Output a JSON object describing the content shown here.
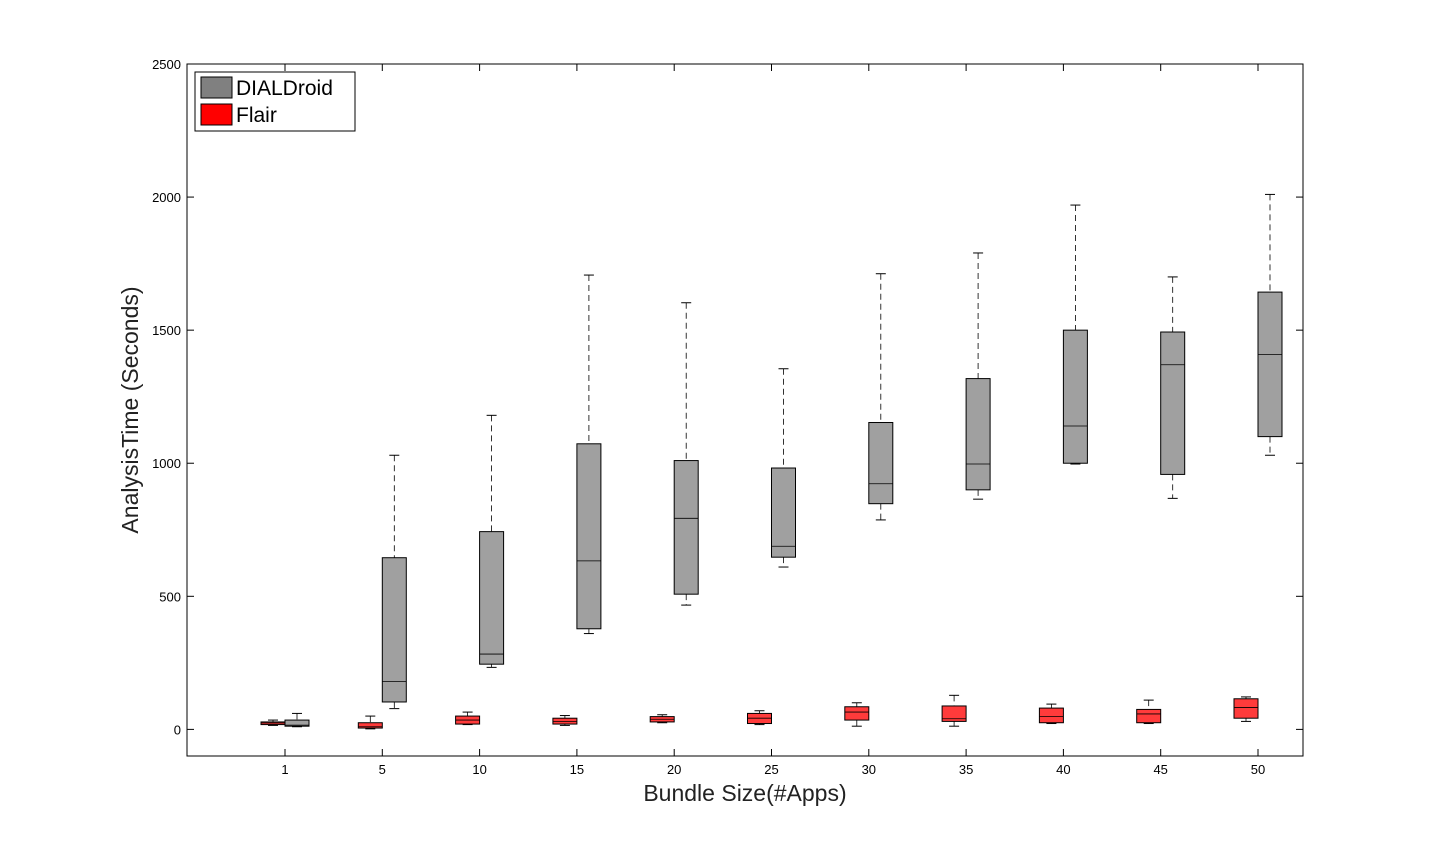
{
  "chart_data": {
    "type": "box",
    "xlabel": "Bundle Size(#Apps)",
    "ylabel": "AnalysisTime (Seconds)",
    "categories": [
      "1",
      "5",
      "10",
      "15",
      "20",
      "25",
      "30",
      "35",
      "40",
      "45",
      "50"
    ],
    "ylim": [
      -100,
      2500
    ],
    "yticks": [
      0,
      500,
      1000,
      1500,
      2000,
      2500
    ],
    "grid": false,
    "legend_position": "top-left",
    "series": [
      {
        "name": "DIALDroid",
        "color": "#a0a0a0",
        "legend_color": "#808080",
        "boxes": [
          {
            "whisker_low": 10,
            "q1": 12,
            "median": 16,
            "q3": 35,
            "whisker_high": 60
          },
          {
            "whisker_low": 78,
            "q1": 103,
            "median": 180,
            "q3": 645,
            "whisker_high": 1030
          },
          {
            "whisker_low": 233,
            "q1": 245,
            "median": 283,
            "q3": 743,
            "whisker_high": 1180
          },
          {
            "whisker_low": 360,
            "q1": 378,
            "median": 633,
            "q3": 1073,
            "whisker_high": 1707
          },
          {
            "whisker_low": 467,
            "q1": 508,
            "median": 793,
            "q3": 1010,
            "whisker_high": 1603
          },
          {
            "whisker_low": 610,
            "q1": 647,
            "median": 688,
            "q3": 982,
            "whisker_high": 1355
          },
          {
            "whisker_low": 787,
            "q1": 848,
            "median": 923,
            "q3": 1153,
            "whisker_high": 1712
          },
          {
            "whisker_low": 865,
            "q1": 900,
            "median": 997,
            "q3": 1318,
            "whisker_high": 1790
          },
          {
            "whisker_low": 997,
            "q1": 1000,
            "median": 1140,
            "q3": 1500,
            "whisker_high": 1970
          },
          {
            "whisker_low": 868,
            "q1": 958,
            "median": 1370,
            "q3": 1493,
            "whisker_high": 1700
          },
          {
            "whisker_low": 1030,
            "q1": 1100,
            "median": 1408,
            "q3": 1643,
            "whisker_high": 2010
          }
        ]
      },
      {
        "name": "Flair",
        "color": "#ff3b3b",
        "legend_color": "#ff0000",
        "boxes": [
          {
            "whisker_low": 15,
            "q1": 18,
            "median": 24,
            "q3": 28,
            "whisker_high": 35
          },
          {
            "whisker_low": 2,
            "q1": 5,
            "median": 10,
            "q3": 25,
            "whisker_high": 50
          },
          {
            "whisker_low": 18,
            "q1": 20,
            "median": 35,
            "q3": 50,
            "whisker_high": 65
          },
          {
            "whisker_low": 15,
            "q1": 20,
            "median": 30,
            "q3": 42,
            "whisker_high": 52
          },
          {
            "whisker_low": 25,
            "q1": 28,
            "median": 38,
            "q3": 48,
            "whisker_high": 55
          },
          {
            "whisker_low": 18,
            "q1": 22,
            "median": 42,
            "q3": 60,
            "whisker_high": 70
          },
          {
            "whisker_low": 12,
            "q1": 35,
            "median": 65,
            "q3": 85,
            "whisker_high": 100
          },
          {
            "whisker_low": 12,
            "q1": 30,
            "median": 40,
            "q3": 88,
            "whisker_high": 128
          },
          {
            "whisker_low": 22,
            "q1": 25,
            "median": 48,
            "q3": 80,
            "whisker_high": 95
          },
          {
            "whisker_low": 22,
            "q1": 25,
            "median": 58,
            "q3": 75,
            "whisker_high": 110
          },
          {
            "whisker_low": 30,
            "q1": 42,
            "median": 82,
            "q3": 115,
            "whisker_high": 122
          }
        ]
      }
    ]
  }
}
